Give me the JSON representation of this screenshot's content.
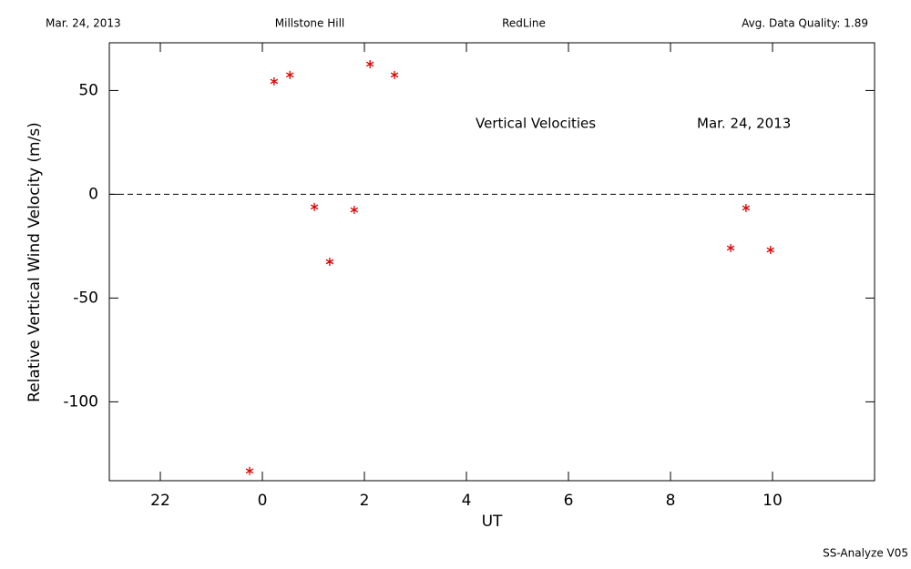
{
  "chart_data": {
    "type": "scatter",
    "header": {
      "left": "Mar. 24, 2013",
      "site": "Millstone Hill",
      "line": "RedLine",
      "quality": "Avg. Data Quality: 1.89"
    },
    "annotations": [
      "Vertical Velocities",
      "Mar. 24, 2013"
    ],
    "footer": "SS-Analyze V05",
    "x_label": "UT",
    "y_label": "Relative Vertical Wind Velocity (m/s)",
    "xlim": [
      -3,
      12
    ],
    "xticks": [
      {
        "value": -2,
        "label": "22"
      },
      0,
      2,
      4,
      6,
      8,
      10
    ],
    "ylim": [
      -138,
      73
    ],
    "yticks": [
      -100,
      -50,
      0,
      50
    ],
    "reference_line": 0,
    "series": [
      {
        "color": "#e00000",
        "x": [
          -0.25,
          0.23,
          0.54,
          1.02,
          1.32,
          1.8,
          2.11,
          2.59,
          9.18,
          9.48,
          9.96
        ],
        "values": [
          -133.3,
          54.4,
          57.5,
          -6.1,
          -32.5,
          -7.5,
          62.7,
          57.5,
          -25.9,
          -6.6,
          -26.8
        ]
      }
    ]
  }
}
